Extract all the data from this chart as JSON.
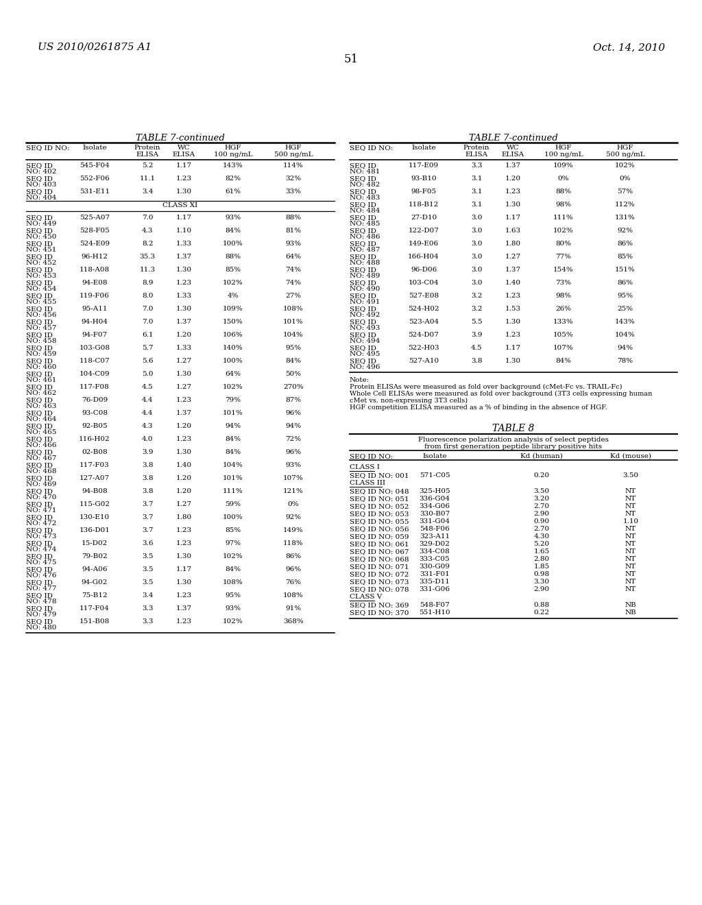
{
  "page_header_left": "US 2010/0261875 A1",
  "page_header_right": "Oct. 14, 2010",
  "page_number": "51",
  "table7_left": {
    "title": "TABLE 7-continued",
    "col_headers": [
      "SEQ ID NO:",
      "Isolate",
      "Protein\nELISA",
      "WC\nELISA",
      "HGF\n100 ng/mL",
      "HGF\n500 ng/mL"
    ],
    "rows": [
      [
        "SEQ ID\nNO: 402",
        "545-F04",
        "5.2",
        "1.17",
        "143%",
        "114%"
      ],
      [
        "SEQ ID\nNO: 403",
        "552-F06",
        "11.1",
        "1.23",
        "82%",
        "32%"
      ],
      [
        "SEQ ID\nNO: 404",
        "531-E11",
        "3.4",
        "1.30",
        "61%",
        "33%"
      ],
      [
        "CLASS XI",
        "",
        "",
        "",
        "",
        ""
      ],
      [
        "SEQ ID\nNO: 449",
        "525-A07",
        "7.0",
        "1.17",
        "93%",
        "88%"
      ],
      [
        "SEQ ID\nNO: 450",
        "528-F05",
        "4.3",
        "1.10",
        "84%",
        "81%"
      ],
      [
        "SEQ ID\nNO: 451",
        "524-E09",
        "8.2",
        "1.33",
        "100%",
        "93%"
      ],
      [
        "SEQ ID\nNO: 452",
        "96-H12",
        "35.3",
        "1.37",
        "88%",
        "64%"
      ],
      [
        "SEQ ID\nNO: 453",
        "118-A08",
        "11.3",
        "1.30",
        "85%",
        "74%"
      ],
      [
        "SEQ ID\nNO: 454",
        "94-E08",
        "8.9",
        "1.23",
        "102%",
        "74%"
      ],
      [
        "SEQ ID\nNO: 455",
        "119-F06",
        "8.0",
        "1.33",
        "4%",
        "27%"
      ],
      [
        "SEQ ID\nNO: 456",
        "95-A11",
        "7.0",
        "1.30",
        "109%",
        "108%"
      ],
      [
        "SEQ ID\nNO: 457",
        "94-H04",
        "7.0",
        "1.37",
        "150%",
        "101%"
      ],
      [
        "SEQ ID\nNO: 458",
        "94-F07",
        "6.1",
        "1.20",
        "106%",
        "104%"
      ],
      [
        "SEQ ID\nNO: 459",
        "103-G08",
        "5.7",
        "1.33",
        "140%",
        "95%"
      ],
      [
        "SEQ ID\nNO: 460",
        "118-C07",
        "5.6",
        "1.27",
        "100%",
        "84%"
      ],
      [
        "SEQ ID\nNO: 461",
        "104-C09",
        "5.0",
        "1.30",
        "64%",
        "50%"
      ],
      [
        "SEQ ID\nNO: 462",
        "117-F08",
        "4.5",
        "1.27",
        "102%",
        "270%"
      ],
      [
        "SEQ ID\nNO: 463",
        "76-D09",
        "4.4",
        "1.23",
        "79%",
        "87%"
      ],
      [
        "SEQ ID\nNO: 464",
        "93-C08",
        "4.4",
        "1.37",
        "101%",
        "96%"
      ],
      [
        "SEQ ID\nNO: 465",
        "92-B05",
        "4.3",
        "1.20",
        "94%",
        "94%"
      ],
      [
        "SEQ ID\nNO: 466",
        "116-H02",
        "4.0",
        "1.23",
        "84%",
        "72%"
      ],
      [
        "SEQ ID\nNO: 467",
        "02-B08",
        "3.9",
        "1.30",
        "84%",
        "96%"
      ],
      [
        "SEQ ID\nNO: 468",
        "117-F03",
        "3.8",
        "1.40",
        "104%",
        "93%"
      ],
      [
        "SEQ ID\nNO: 469",
        "127-A07",
        "3.8",
        "1.20",
        "101%",
        "107%"
      ],
      [
        "SEQ ID\nNO: 470",
        "94-B08",
        "3.8",
        "1.20",
        "111%",
        "121%"
      ],
      [
        "SEQ ID\nNO: 471",
        "115-G02",
        "3.7",
        "1.27",
        "59%",
        "0%"
      ],
      [
        "SEQ ID\nNO: 472",
        "130-E10",
        "3.7",
        "1.80",
        "100%",
        "92%"
      ],
      [
        "SEQ ID\nNO: 473",
        "136-D01",
        "3.7",
        "1.23",
        "85%",
        "149%"
      ],
      [
        "SEQ ID\nNO: 474",
        "15-D02",
        "3.6",
        "1.23",
        "97%",
        "118%"
      ],
      [
        "SEQ ID\nNO: 475",
        "79-B02",
        "3.5",
        "1.30",
        "102%",
        "86%"
      ],
      [
        "SEQ ID\nNO: 476",
        "94-A06",
        "3.5",
        "1.17",
        "84%",
        "96%"
      ],
      [
        "SEQ ID\nNO: 477",
        "94-G02",
        "3.5",
        "1.30",
        "108%",
        "76%"
      ],
      [
        "SEQ ID\nNO: 478",
        "75-B12",
        "3.4",
        "1.23",
        "95%",
        "108%"
      ],
      [
        "SEQ ID\nNO: 479",
        "117-F04",
        "3.3",
        "1.37",
        "93%",
        "91%"
      ],
      [
        "SEQ ID\nNO: 480",
        "151-B08",
        "3.3",
        "1.23",
        "102%",
        "368%"
      ]
    ]
  },
  "table7_right": {
    "title": "TABLE 7-continued",
    "col_headers": [
      "SEQ ID NO:",
      "Isolate",
      "Protein\nELISA",
      "WC\nELISA",
      "HGF\n100 ng/mL",
      "HGF\n500 ng/mL"
    ],
    "rows": [
      [
        "SEQ ID\nNO: 481",
        "117-E09",
        "3.3",
        "1.37",
        "109%",
        "102%"
      ],
      [
        "SEQ ID\nNO: 482",
        "93-B10",
        "3.1",
        "1.20",
        "0%",
        "0%"
      ],
      [
        "SEQ ID\nNO: 483",
        "98-F05",
        "3.1",
        "1.23",
        "88%",
        "57%"
      ],
      [
        "SEQ ID\nNO: 484",
        "118-B12",
        "3.1",
        "1.30",
        "98%",
        "112%"
      ],
      [
        "SEQ ID\nNO: 485",
        "27-D10",
        "3.0",
        "1.17",
        "111%",
        "131%"
      ],
      [
        "SEQ ID\nNO: 486",
        "122-D07",
        "3.0",
        "1.63",
        "102%",
        "92%"
      ],
      [
        "SEQ ID\nNO: 487",
        "149-E06",
        "3.0",
        "1.80",
        "80%",
        "86%"
      ],
      [
        "SEQ ID\nNO: 488",
        "166-H04",
        "3.0",
        "1.27",
        "77%",
        "85%"
      ],
      [
        "SEQ ID\nNO: 489",
        "96-D06",
        "3.0",
        "1.37",
        "154%",
        "151%"
      ],
      [
        "SEQ ID\nNO: 490",
        "103-C04",
        "3.0",
        "1.40",
        "73%",
        "86%"
      ],
      [
        "SEQ ID\nNO: 491",
        "527-E08",
        "3.2",
        "1.23",
        "98%",
        "95%"
      ],
      [
        "SEQ ID\nNO: 492",
        "524-H02",
        "3.2",
        "1.53",
        "26%",
        "25%"
      ],
      [
        "SEQ ID\nNO: 493",
        "523-A04",
        "5.5",
        "1.30",
        "133%",
        "143%"
      ],
      [
        "SEQ ID\nNO: 494",
        "524-D07",
        "3.9",
        "1.23",
        "105%",
        "104%"
      ],
      [
        "SEQ ID\nNO: 495",
        "522-H03",
        "4.5",
        "1.17",
        "107%",
        "94%"
      ],
      [
        "SEQ ID\nNO: 496",
        "527-A10",
        "3.8",
        "1.30",
        "84%",
        "78%"
      ]
    ],
    "note_lines": [
      "Note:",
      "Protein ELISAs were measured as fold over background (cMet-Fc vs. TRAIL-Fc)",
      "Whole Cell ELISAs were measured as fold over background (3T3 cells expressing human",
      "cMet vs. non-expressing 3T3 cells)",
      "HGF competition ELISA measured as a % of binding in the absence of HGF."
    ]
  },
  "table8": {
    "title": "TABLE 8",
    "subtitle_lines": [
      "Fluorescence polarization analysis of select peptides",
      "from first generation peptide library positive hits"
    ],
    "col_headers": [
      "SEQ ID NO:",
      "Isolate",
      "Kd (human)",
      "Kd (mouse)"
    ],
    "sections": [
      {
        "label": "CLASS I",
        "underline": true,
        "rows": [
          [
            "SEQ ID NO: 001",
            "571-C05",
            "0.20",
            "3.50"
          ]
        ]
      },
      {
        "label": "CLASS III",
        "underline": true,
        "rows": [
          [
            "SEQ ID NO: 048",
            "325-H05",
            "3.50",
            "NT"
          ],
          [
            "SEQ ID NO: 051",
            "336-G04",
            "3.20",
            "NT"
          ],
          [
            "SEQ ID NO: 052",
            "334-G06",
            "2.70",
            "NT"
          ],
          [
            "SEQ ID NO: 053",
            "330-B07",
            "2.90",
            "NT"
          ],
          [
            "SEQ ID NO: 055",
            "331-G04",
            "0.90",
            "1.10"
          ],
          [
            "SEQ ID NO: 056",
            "548-F06",
            "2.70",
            "NT"
          ],
          [
            "SEQ ID NO: 059",
            "323-A11",
            "4.30",
            "NT"
          ],
          [
            "SEQ ID NO: 061",
            "329-D02",
            "5.20",
            "NT"
          ],
          [
            "SEQ ID NO: 067",
            "334-C08",
            "1.65",
            "NT"
          ],
          [
            "SEQ ID NO: 068",
            "333-C05",
            "2.80",
            "NT"
          ],
          [
            "SEQ ID NO: 071",
            "330-G09",
            "1.85",
            "NT"
          ],
          [
            "SEQ ID NO: 072",
            "331-F01",
            "0.98",
            "NT"
          ],
          [
            "SEQ ID NO: 073",
            "335-D11",
            "3.30",
            "NT"
          ],
          [
            "SEQ ID NO: 078",
            "331-G06",
            "2.90",
            "NT"
          ]
        ]
      },
      {
        "label": "CLASS V",
        "underline": true,
        "rows": [
          [
            "SEQ ID NO: 369",
            "548-F07",
            "0.88",
            "NB"
          ],
          [
            "SEQ ID NO: 370",
            "551-H10",
            "0.22",
            "NB"
          ]
        ]
      }
    ]
  }
}
